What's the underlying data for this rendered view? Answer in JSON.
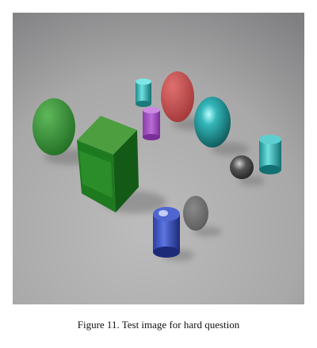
{
  "figure": {
    "caption": "Figure 11. Test image for hard question"
  }
}
